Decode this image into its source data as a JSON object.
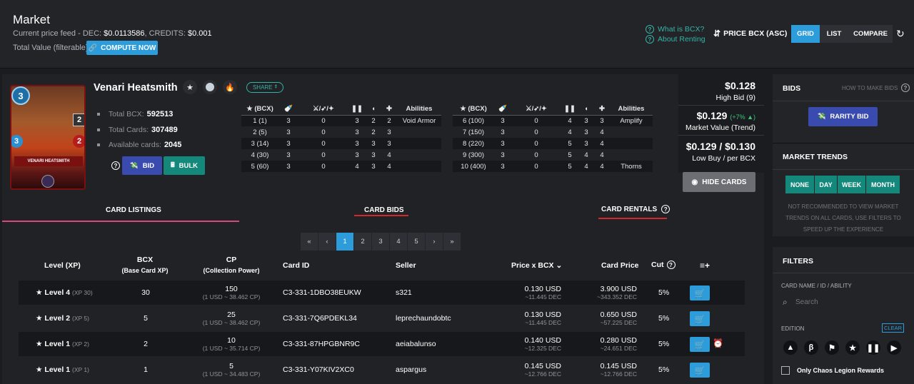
{
  "header": {
    "title": "Market",
    "price_feed_label": "Current price feed - DEC: ",
    "dec_price": "$0.0113586",
    "credits_label": ", CREDITS: ",
    "credits_price": "$0.001",
    "total_value_label": "Total Value (filterable):",
    "compute_now": "COMPUTE NOW",
    "what_is_bcx": "What is BCX?",
    "about_renting": "About Renting",
    "sort_label": "PRICE BCX (ASC)",
    "view_grid": "GRID",
    "view_list": "LIST",
    "view_compare": "COMPARE"
  },
  "card": {
    "name": "Venari Heatsmith",
    "art_name": "VENARI HEATSMITH",
    "share": "SHARE",
    "mana": "3",
    "stat_melee": "2",
    "stat_health": "2",
    "stat_speed": "3",
    "total_bcx_label": "Total BCX:",
    "total_bcx": "592513",
    "total_cards_label": "Total Cards:",
    "total_cards": "307489",
    "available_label": "Available cards:",
    "available": "2045",
    "bid": "BID",
    "bulk": "BULK"
  },
  "levels_header": [
    "(BCX)",
    "",
    "",
    "",
    "",
    "",
    "Abilities"
  ],
  "levels_left": [
    [
      "1 (1)",
      "3",
      "0",
      "3",
      "2",
      "2",
      "Void Armor"
    ],
    [
      "2 (5)",
      "3",
      "0",
      "3",
      "2",
      "3",
      ""
    ],
    [
      "3 (14)",
      "3",
      "0",
      "3",
      "3",
      "3",
      ""
    ],
    [
      "4 (30)",
      "3",
      "0",
      "3",
      "3",
      "4",
      ""
    ],
    [
      "5 (60)",
      "3",
      "0",
      "4",
      "3",
      "4",
      ""
    ]
  ],
  "levels_right": [
    [
      "6 (100)",
      "3",
      "0",
      "4",
      "3",
      "3",
      "Amplify"
    ],
    [
      "7 (150)",
      "3",
      "0",
      "4",
      "3",
      "4",
      ""
    ],
    [
      "8 (220)",
      "3",
      "0",
      "5",
      "3",
      "4",
      ""
    ],
    [
      "9 (300)",
      "3",
      "0",
      "5",
      "4",
      "4",
      ""
    ],
    [
      "10 (400)",
      "3",
      "0",
      "5",
      "4",
      "4",
      "Thorns"
    ]
  ],
  "prices": {
    "high_bid": "$0.128",
    "high_bid_label": "High Bid (9)",
    "market_value": "$0.129",
    "market_change": "(+7% ▲)",
    "market_label": "Market Value (Trend)",
    "low_buy": "$0.129 / $0.130",
    "low_buy_label": "Low Buy / per BCX",
    "hide_cards": "HIDE CARDS"
  },
  "tabs": {
    "listings": "CARD LISTINGS",
    "bids": "CARD BIDS",
    "rentals": "CARD RENTALS"
  },
  "pager": [
    "«",
    "‹",
    "1",
    "2",
    "3",
    "4",
    "5",
    "›",
    "»"
  ],
  "columns": {
    "level": "Level (XP)",
    "bcx": "BCX",
    "bcx_sub": "(Base Card XP)",
    "cp": "CP",
    "cp_sub": "(Collection Power)",
    "card_id": "Card ID",
    "seller": "Seller",
    "price_bcx": "Price x BCX",
    "card_price": "Card Price",
    "cut": "Cut"
  },
  "listings": [
    {
      "level": "Level 4",
      "xp": "(XP 30)",
      "bcx": "30",
      "cp": "150",
      "cp_sub": "(1 USD ~ 38.462 CP)",
      "id": "C3-331-1DBO38EUKW",
      "seller": "s321",
      "pbcx": "0.130 USD",
      "pbcx_dec": "~11.445 DEC",
      "price": "3.900 USD",
      "price_dec": "~343.352 DEC",
      "cut": "5%"
    },
    {
      "level": "Level 2",
      "xp": "(XP 5)",
      "bcx": "5",
      "cp": "25",
      "cp_sub": "(1 USD ~ 38.462 CP)",
      "id": "C3-331-7Q6PDEKL34",
      "seller": "leprechaundobtc",
      "pbcx": "0.130 USD",
      "pbcx_dec": "~11.445 DEC",
      "price": "0.650 USD",
      "price_dec": "~57.225 DEC",
      "cut": "5%"
    },
    {
      "level": "Level 1",
      "xp": "(XP 2)",
      "bcx": "2",
      "cp": "10",
      "cp_sub": "(1 USD ~ 35.714 CP)",
      "id": "C3-331-87HPGBNR9C",
      "seller": "aeiabalunso",
      "pbcx": "0.140 USD",
      "pbcx_dec": "~12.325 DEC",
      "price": "0.280 USD",
      "price_dec": "~24.651 DEC",
      "cut": "5%"
    },
    {
      "level": "Level 1",
      "xp": "(XP 1)",
      "bcx": "1",
      "cp": "5",
      "cp_sub": "(1 USD ~ 34.483 CP)",
      "id": "C3-331-Y07KIV2XC0",
      "seller": "aspargus",
      "pbcx": "0.145 USD",
      "pbcx_dec": "~12.766 DEC",
      "price": "0.145 USD",
      "price_dec": "~12.766 DEC",
      "cut": "5%"
    }
  ],
  "sidebar": {
    "bids_title": "BIDS",
    "how_to_bid": "HOW TO MAKE BIDS",
    "rarity_bid": "RARITY BID",
    "trends_title": "MARKET TRENDS",
    "trend_buttons": [
      "NONE",
      "DAY",
      "WEEK",
      "MONTH"
    ],
    "trend_note": "NOT RECOMMENDED TO VIEW MARKET TRENDS ON ALL CARDS, USE FILTERS TO SPEED UP THE EXPERIENCE",
    "filters_title": "FILTERS",
    "search_label": "CARD NAME / ID / ABILITY",
    "search_placeholder": "Search",
    "edition_label": "EDITION",
    "clear": "CLEAR",
    "chaos_only": "Only Chaos Legion Rewards"
  },
  "colors": {
    "accent_blue": "#2c9cdb",
    "teal": "#15887c",
    "bid_purple": "#3a4bb0",
    "red_underline": "#d22a2a"
  }
}
